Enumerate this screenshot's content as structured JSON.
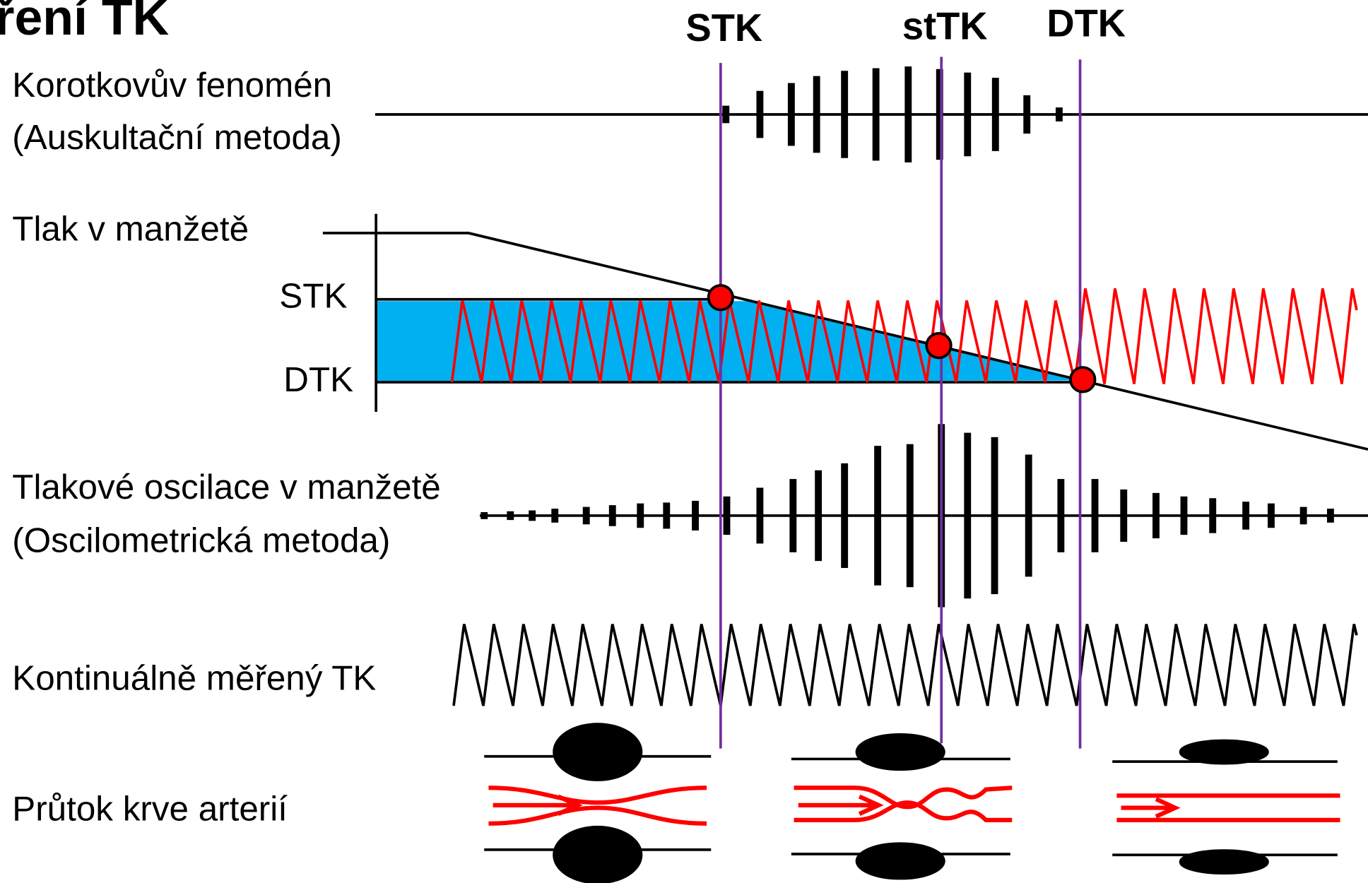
{
  "title": "ření TK",
  "markers": [
    "STK",
    "stTK",
    "DTK"
  ],
  "rows": [
    {
      "label": "Korotkovův fenomén",
      "sublabel": "(Auskultační metoda)"
    },
    {
      "label": "Tlak v manžetě",
      "axis_labels": [
        "STK",
        "DTK"
      ]
    },
    {
      "label": "Tlakové oscilace v manžetě",
      "sublabel": "(Oscilometrická metoda)"
    },
    {
      "label": "Kontinuálně měřený TK"
    },
    {
      "label": "Průtok krve arterií"
    }
  ]
}
